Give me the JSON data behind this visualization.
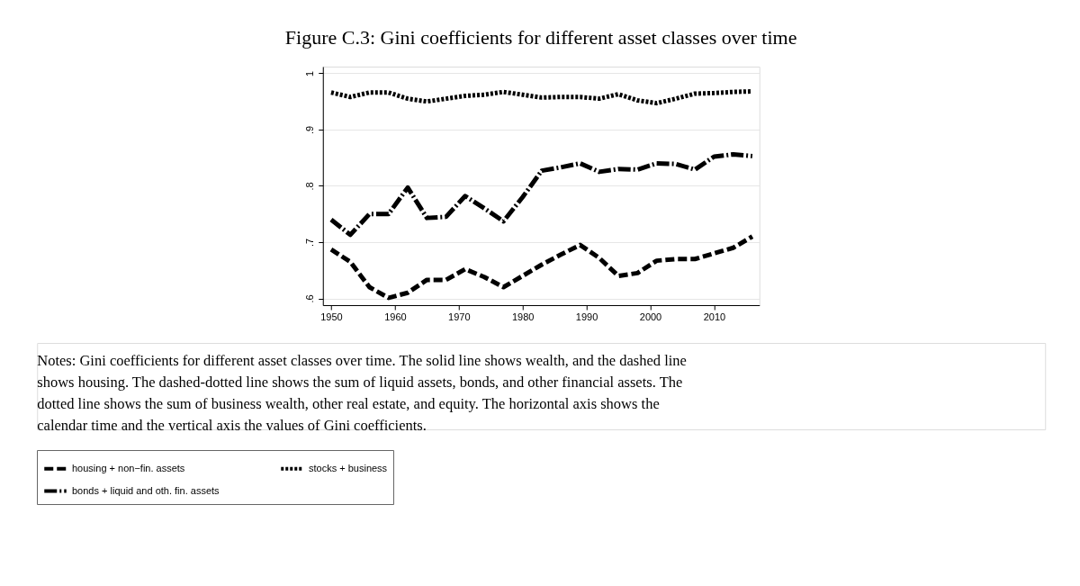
{
  "chart_data": {
    "type": "line",
    "title": "Figure C.3: Gini coefficients for different asset classes over time",
    "x": [
      1950,
      1953,
      1956,
      1959,
      1962,
      1965,
      1968,
      1971,
      1974,
      1977,
      1980,
      1983,
      1986,
      1989,
      1992,
      1995,
      1998,
      2001,
      2004,
      2007,
      2010,
      2013,
      2016
    ],
    "series": [
      {
        "name": "housing + non−fin. assets",
        "color": "#000000",
        "line_style": "dashed",
        "values": [
          0.687,
          0.665,
          0.62,
          0.601,
          0.61,
          0.633,
          0.633,
          0.652,
          0.638,
          0.62,
          0.64,
          0.66,
          0.678,
          0.695,
          0.672,
          0.64,
          0.645,
          0.667,
          0.67,
          0.67,
          0.68,
          0.69,
          0.71
        ]
      },
      {
        "name": "stocks + business",
        "color": "#000000",
        "line_style": "dotted",
        "values": [
          0.966,
          0.958,
          0.966,
          0.966,
          0.955,
          0.95,
          0.955,
          0.96,
          0.962,
          0.967,
          0.962,
          0.957,
          0.958,
          0.958,
          0.955,
          0.963,
          0.952,
          0.947,
          0.955,
          0.964,
          0.965,
          0.967,
          0.968
        ]
      },
      {
        "name": "bonds + liquid and oth. fin. assets",
        "color": "#000000",
        "line_style": "dashdot",
        "values": [
          0.74,
          0.713,
          0.75,
          0.75,
          0.797,
          0.743,
          0.745,
          0.782,
          0.76,
          0.737,
          0.78,
          0.827,
          0.833,
          0.84,
          0.825,
          0.83,
          0.829,
          0.84,
          0.839,
          0.829,
          0.852,
          0.856,
          0.853
        ]
      }
    ],
    "xlim": [
      1948.7,
      2017.1
    ],
    "xticks": [
      1950,
      1960,
      1970,
      1980,
      1990,
      2000,
      2010
    ],
    "ylim": [
      0.588,
      1.012
    ],
    "yticks": [
      {
        "value": 0.6,
        "label": ".6"
      },
      {
        "value": 0.7,
        "label": ".7"
      },
      {
        "value": 0.8,
        "label": ".8"
      },
      {
        "value": 0.9,
        "label": ".9"
      },
      1
    ],
    "grid": "y",
    "legend": "bottom",
    "marker": "none",
    "annotations": [
      "Notes: Gini coefficients for different asset classes over time. The solid line shows wealth, and the dashed line shows housing. The dashed-dotted line shows the sum of liquid assets, bonds, and other financial assets. The dotted line shows the sum of business wealth, other real estate, and equity. The horizontal axis shows the calendar time and the vertical axis the values of Gini coefficients."
    ]
  }
}
